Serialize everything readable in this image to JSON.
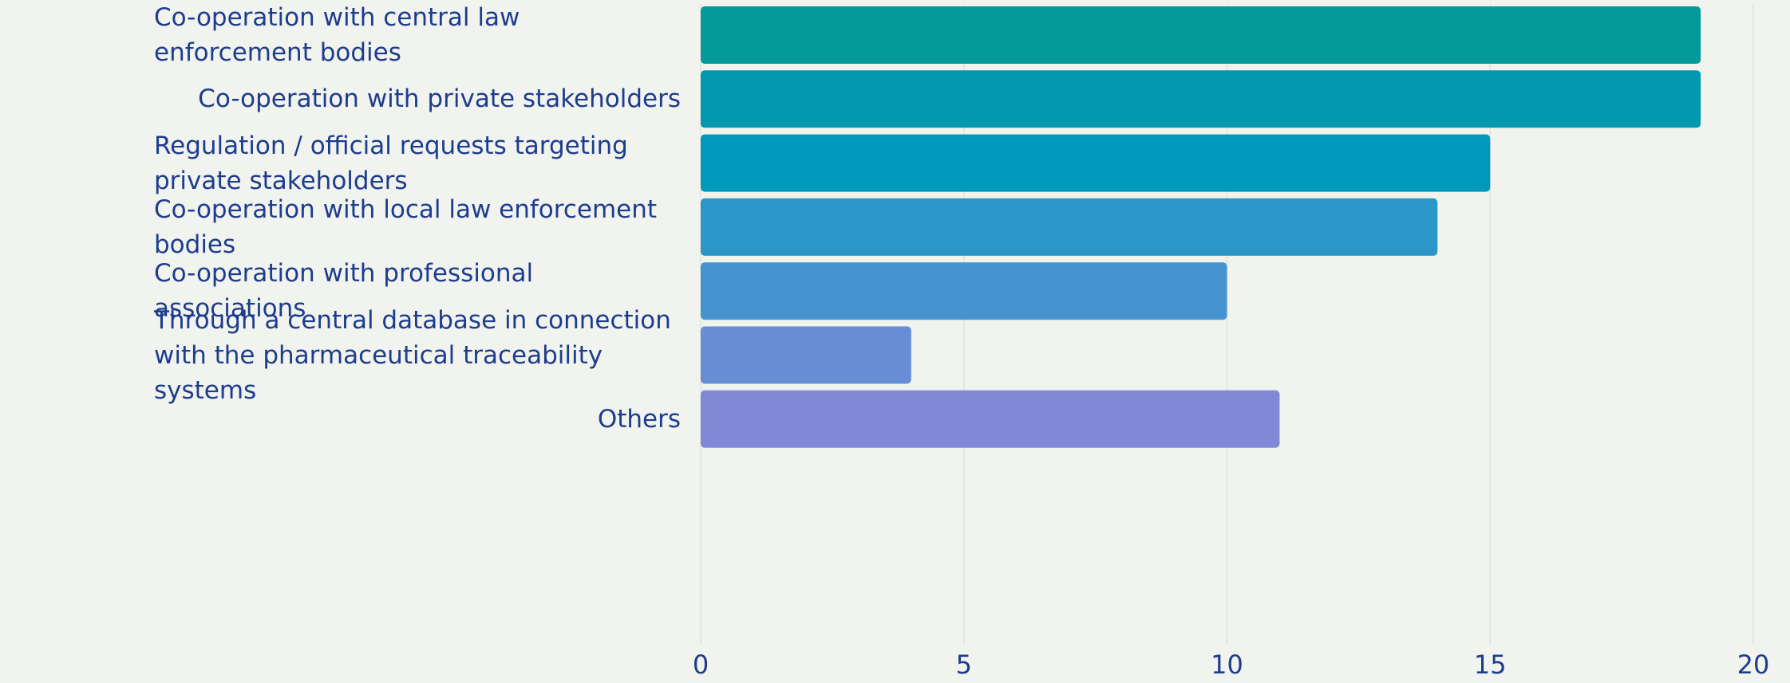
{
  "chart_data": {
    "type": "bar",
    "orientation": "horizontal",
    "categories": [
      "Co-operation with central law enforcement bodies",
      "Co-operation with private stakeholders",
      "Regulation / official requests targeting private stakeholders",
      "Co-operation with local law enforcement bodies",
      "Co-operation with professional associations",
      "Through a central database in connection with the pharmaceutical traceability systems",
      "Others"
    ],
    "values": [
      19,
      19,
      15,
      14,
      10,
      4,
      11
    ],
    "colors": [
      "#049a9a",
      "#0299b0",
      "#0198be",
      "#2b96c8",
      "#4793d2",
      "#678dd4",
      "#7f89d7"
    ],
    "xlim": [
      0,
      20
    ],
    "xticks": [
      0,
      5,
      10,
      15,
      20
    ],
    "grid": true
  }
}
